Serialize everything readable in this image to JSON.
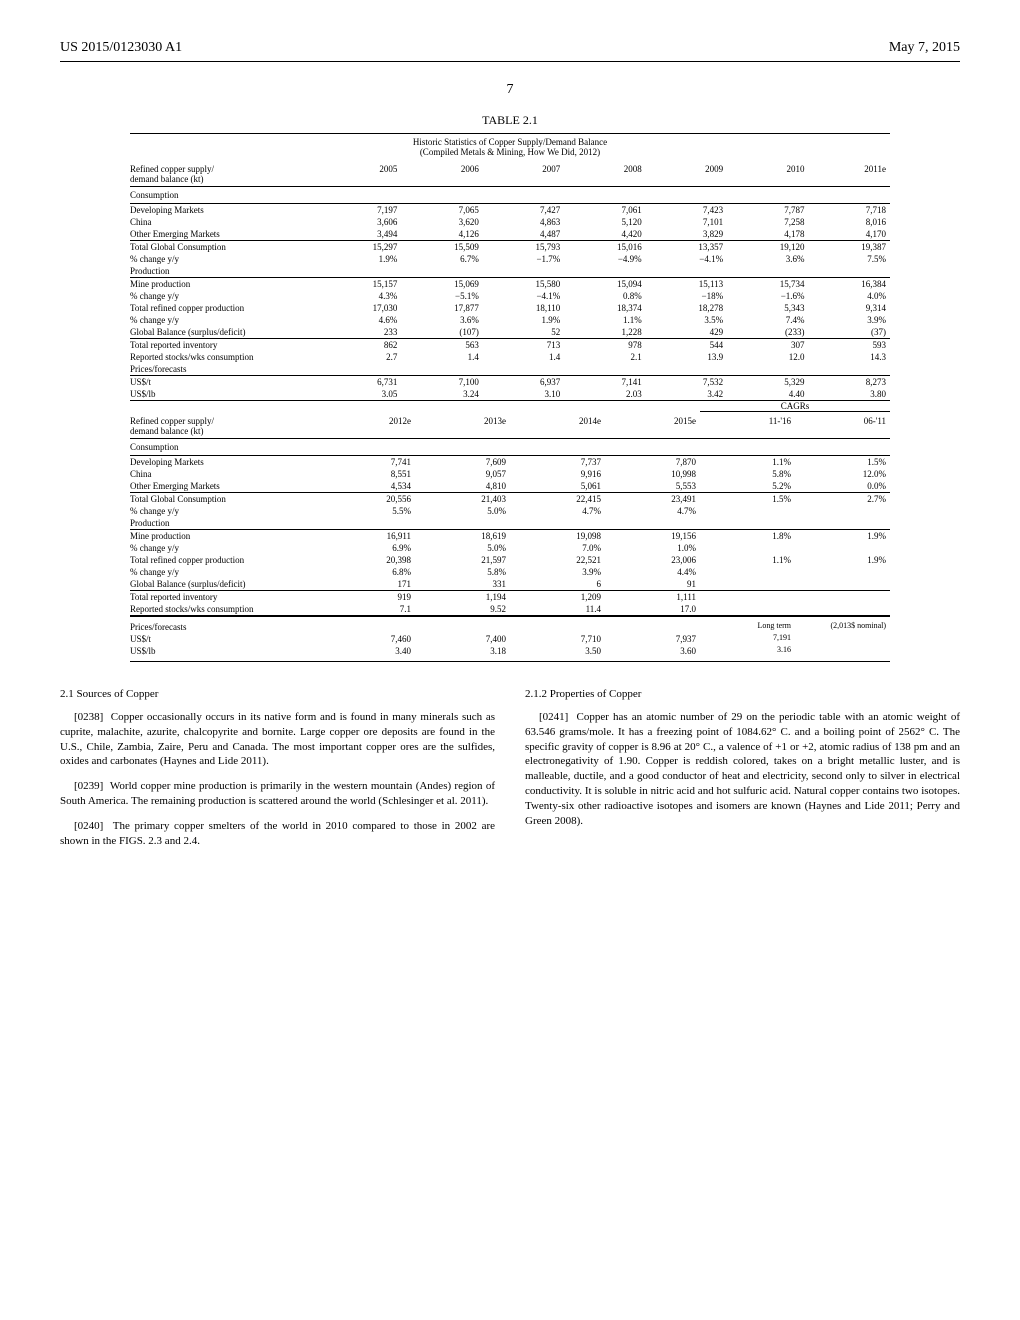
{
  "header": {
    "docket": "US 2015/0123030 A1",
    "date": "May 7, 2015",
    "page": "7"
  },
  "table": {
    "title": "TABLE 2.1",
    "subhead1": "Historic Statistics of Copper Supply/Demand Balance",
    "subhead2": "(Compiled Metals & Mining, How We Did, 2012)",
    "head_label": "Refined copper supply/\ndemand balance (kt)",
    "years_a": [
      "2005",
      "2006",
      "2007",
      "2008",
      "2009",
      "2010",
      "2011e"
    ],
    "sections_a": [
      {
        "label": "Consumption",
        "rows": [
          {
            "l": "Developing Markets",
            "c": [
              "7,197",
              "7,065",
              "7,427",
              "7,061",
              "7,423",
              "7,787",
              "7,718"
            ]
          },
          {
            "l": "China",
            "c": [
              "3,606",
              "3,620",
              "4,863",
              "5,120",
              "7,101",
              "7,258",
              "8,016"
            ]
          },
          {
            "l": "Other Emerging Markets",
            "c": [
              "3,494",
              "4,126",
              "4,487",
              "4,420",
              "3,829",
              "4,178",
              "4,170"
            ]
          }
        ]
      },
      {
        "rows": [
          {
            "l": "Total Global Consumption",
            "c": [
              "15,297",
              "15,509",
              "15,793",
              "15,016",
              "13,357",
              "19,120",
              "19,387"
            ]
          },
          {
            "l": "% change y/y",
            "c": [
              "1.9%",
              "6.7%",
              "−1.7%",
              "−4.9%",
              "−4.1%",
              "3.6%",
              "7.5%"
            ]
          },
          {
            "l": "Production",
            "c": [
              "",
              "",
              "",
              "",
              "",
              "",
              ""
            ]
          }
        ]
      },
      {
        "rows": [
          {
            "l": "Mine production",
            "c": [
              "15,157",
              "15,069",
              "15,580",
              "15,094",
              "15,113",
              "15,734",
              "16,384"
            ]
          },
          {
            "l": "% change y/y",
            "c": [
              "4.3%",
              "−5.1%",
              "−4.1%",
              "0.8%",
              "−18%",
              "−1.6%",
              "4.0%"
            ]
          },
          {
            "l": "Total refined copper production",
            "c": [
              "17,030",
              "17,877",
              "18,110",
              "18,374",
              "18,278",
              "5,343",
              "9,314"
            ]
          },
          {
            "l": "% change y/y",
            "c": [
              "4.6%",
              "3.6%",
              "1.9%",
              "1.1%",
              "3.5%",
              "7.4%",
              "3.9%"
            ]
          },
          {
            "l": "Global Balance (surplus/deficit)",
            "c": [
              "233",
              "(107)",
              "52",
              "1,228",
              "429",
              "(233)",
              "(37)"
            ]
          }
        ]
      },
      {
        "rows": [
          {
            "l": "Total reported inventory",
            "c": [
              "862",
              "563",
              "713",
              "978",
              "544",
              "307",
              "593"
            ]
          },
          {
            "l": "Reported stocks/wks consumption",
            "c": [
              "2.7",
              "1.4",
              "1.4",
              "2.1",
              "13.9",
              "12.0",
              "14.3"
            ]
          },
          {
            "l": "Prices/forecasts",
            "c": [
              "",
              "",
              "",
              "",
              "",
              "",
              ""
            ]
          }
        ]
      },
      {
        "rows": [
          {
            "l": "US$/t",
            "c": [
              "6,731",
              "7,100",
              "6,937",
              "7,141",
              "7,532",
              "5,329",
              "8,273"
            ]
          },
          {
            "l": "US$/lb",
            "c": [
              "3.05",
              "3.24",
              "3.10",
              "2.03",
              "3.42",
              "4.40",
              "3.80"
            ]
          }
        ]
      }
    ],
    "head_label_b": "Refined copper supply/\ndemand balance (kt)",
    "cagr_label": "CAGRs",
    "years_b": [
      "2012e",
      "2013e",
      "2014e",
      "2015e",
      "11-'16",
      "06-'11"
    ],
    "sections_b": [
      {
        "label": "Consumption",
        "rows": [
          {
            "l": "Developing Markets",
            "c": [
              "7,741",
              "7,609",
              "7,737",
              "7,870",
              "1.1%",
              "1.5%"
            ]
          },
          {
            "l": "China",
            "c": [
              "8,551",
              "9,057",
              "9,916",
              "10,998",
              "5.8%",
              "12.0%"
            ]
          },
          {
            "l": "Other Emerging Markets",
            "c": [
              "4,534",
              "4,810",
              "5,061",
              "5,553",
              "5.2%",
              "0.0%"
            ]
          }
        ]
      },
      {
        "rows": [
          {
            "l": "Total Global Consumption",
            "c": [
              "20,556",
              "21,403",
              "22,415",
              "23,491",
              "1.5%",
              "2.7%"
            ]
          },
          {
            "l": "% change y/y",
            "c": [
              "5.5%",
              "5.0%",
              "4.7%",
              "4.7%",
              "",
              ""
            ]
          },
          {
            "l": "Production",
            "c": [
              "",
              "",
              "",
              "",
              "",
              ""
            ]
          }
        ]
      },
      {
        "rows": [
          {
            "l": "Mine production",
            "c": [
              "16,911",
              "18,619",
              "19,098",
              "19,156",
              "1.8%",
              "1.9%"
            ]
          },
          {
            "l": "% change y/y",
            "c": [
              "6.9%",
              "5.0%",
              "7.0%",
              "1.0%",
              "",
              ""
            ]
          },
          {
            "l": "Total refined copper production",
            "c": [
              "20,398",
              "21,597",
              "22,521",
              "23,006",
              "1.1%",
              "1.9%"
            ]
          },
          {
            "l": "% change y/y",
            "c": [
              "6.8%",
              "5.8%",
              "3.9%",
              "4.4%",
              "",
              ""
            ]
          },
          {
            "l": "Global Balance (surplus/deficit)",
            "c": [
              "171",
              "331",
              "6",
              "91",
              "",
              ""
            ]
          }
        ]
      },
      {
        "rows": [
          {
            "l": "Total reported inventory",
            "c": [
              "919",
              "1,194",
              "1,209",
              "1,111",
              "",
              ""
            ]
          },
          {
            "l": "Reported stocks/wks consumption",
            "c": [
              "7.1",
              "9.52",
              "11.4",
              "17.0",
              "",
              ""
            ]
          }
        ]
      }
    ],
    "prices_label": "Prices/forecasts",
    "longterm_c5": "Long term",
    "longterm_c6": "(2,013$ nominal)",
    "prices_rows": [
      {
        "l": "US$/t",
        "c": [
          "7,460",
          "7,400",
          "7,710",
          "7,937",
          "7,191",
          ""
        ]
      },
      {
        "l": "US$/lb",
        "c": [
          "3.40",
          "3.18",
          "3.50",
          "3.60",
          "3.16",
          ""
        ]
      }
    ]
  },
  "body": {
    "left": {
      "title": "2.1 Sources of Copper",
      "p1_num": "[0238]",
      "p1": "Copper occasionally occurs in its native form and is found in many minerals such as cuprite, malachite, azurite, chalcopyrite and bornite. Large copper ore deposits are found in the U.S., Chile, Zambia, Zaire, Peru and Canada. The most important copper ores are the sulfides, oxides and carbonates (Haynes and Lide 2011).",
      "p2_num": "[0239]",
      "p2": "World copper mine production is primarily in the western mountain (Andes) region of South America. The remaining production is scattered around the world (Schlesinger et al. 2011).",
      "p3_num": "[0240]",
      "p3": "The primary copper smelters of the world in 2010 compared to those in 2002 are shown in the FIGS. 2.3 and 2.4."
    },
    "right": {
      "title": "2.1.2 Properties of Copper",
      "p1_num": "[0241]",
      "p1": "Copper has an atomic number of 29 on the periodic table with an atomic weight of 63.546 grams/mole. It has a freezing point of 1084.62° C. and a boiling point of 2562° C. The specific gravity of copper is 8.96 at 20° C., a valence of +1 or +2, atomic radius of 138 pm and an electronegativity of 1.90. Copper is reddish colored, takes on a bright metallic luster, and is malleable, ductile, and a good conductor of heat and electricity, second only to silver in electrical conductivity. It is soluble in nitric acid and hot sulfuric acid. Natural copper contains two isotopes. Twenty-six other radioactive isotopes and isomers are known (Haynes and Lide 2011; Perry and Green 2008)."
    }
  }
}
